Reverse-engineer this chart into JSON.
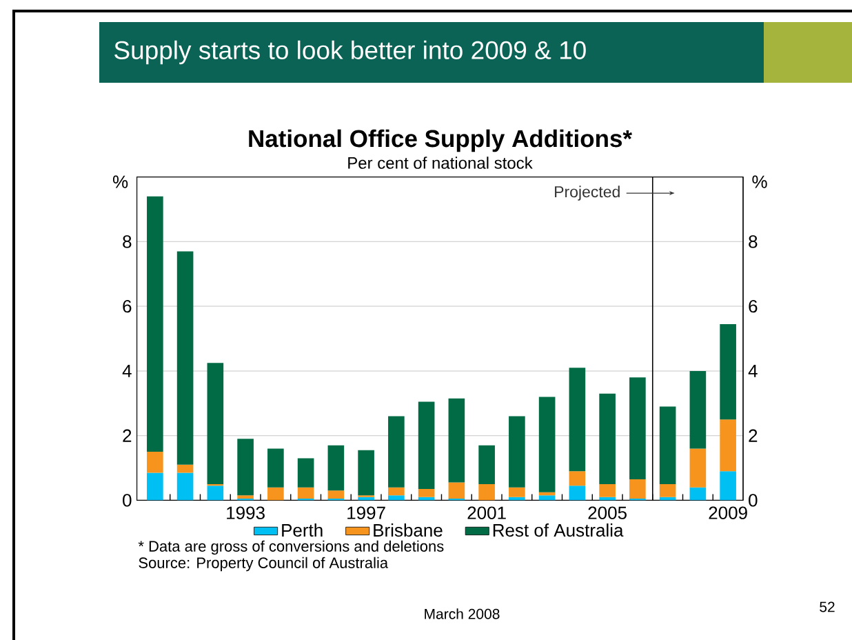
{
  "chart_data": {
    "type": "bar",
    "stacked": true,
    "title": "National Office Supply Additions*",
    "subtitle": "Per cent of national stock",
    "ylabel": "%",
    "y2label": "%",
    "x": [
      1990,
      1991,
      1992,
      1993,
      1994,
      1995,
      1996,
      1997,
      1998,
      1999,
      2000,
      2001,
      2002,
      2003,
      2004,
      2005,
      2006,
      2007,
      2008,
      2009
    ],
    "xlim": [
      1989.4,
      2009.5
    ],
    "xticks": [
      {
        "value": 1990.5,
        "label": null
      },
      {
        "value": 1991.5,
        "label": null
      },
      {
        "value": 1992.5,
        "label": null
      },
      1993,
      {
        "value": 1993.5,
        "label": null
      },
      {
        "value": 1994.5,
        "label": null
      },
      {
        "value": 1995.5,
        "label": null
      },
      {
        "value": 1996.5,
        "label": null
      },
      1997,
      {
        "value": 1997.5,
        "label": null
      },
      {
        "value": 1998.5,
        "label": null
      },
      {
        "value": 1999.5,
        "label": null
      },
      {
        "value": 2000.5,
        "label": null
      },
      2001,
      {
        "value": 2001.5,
        "label": null
      },
      {
        "value": 2002.5,
        "label": null
      },
      {
        "value": 2003.5,
        "label": null
      },
      {
        "value": 2004.5,
        "label": null
      },
      2005,
      {
        "value": 2005.5,
        "label": null
      },
      {
        "value": 2006.5,
        "label": null
      },
      {
        "value": 2007.5,
        "label": null
      },
      {
        "value": 2008.5,
        "label": null
      },
      2009
    ],
    "ylim": [
      0,
      10
    ],
    "yticks": [
      0,
      2,
      4,
      6,
      8
    ],
    "y2lim": [
      0,
      10
    ],
    "y2ticks": [
      0,
      2,
      4,
      6,
      8
    ],
    "grid": "y",
    "legend": "bottom",
    "series": [
      {
        "name": "Perth",
        "color": "#00bff3",
        "values": [
          0.85,
          0.85,
          0.45,
          0.05,
          0,
          0.05,
          0.05,
          0.1,
          0.15,
          0.1,
          0.05,
          0,
          0.1,
          0.15,
          0.45,
          0.1,
          0.05,
          0.1,
          0.4,
          0.9
        ]
      },
      {
        "name": "Brisbane",
        "color": "#f7941d",
        "values": [
          0.65,
          0.25,
          0.05,
          0.1,
          0.4,
          0.35,
          0.25,
          0.05,
          0.25,
          0.25,
          0.5,
          0.5,
          0.3,
          0.1,
          0.45,
          0.4,
          0.6,
          0.4,
          1.2,
          1.6
        ]
      },
      {
        "name": "Rest of Australia",
        "color": "#006b45",
        "values": [
          7.9,
          6.6,
          3.75,
          1.75,
          1.2,
          0.9,
          1.4,
          1.4,
          2.2,
          2.7,
          2.6,
          1.2,
          2.2,
          2.95,
          3.2,
          2.8,
          3.15,
          2.4,
          2.4,
          2.95
        ]
      }
    ],
    "ref_lines": [
      {
        "axis": "x",
        "value": 2006.5,
        "label": "Projected"
      }
    ],
    "annotations": [
      "Supply starts to look better into 2009 & 10",
      "*  Data are gross of conversions and deletions",
      "Source: Property Council of Australia",
      "March 2008",
      "52"
    ]
  }
}
